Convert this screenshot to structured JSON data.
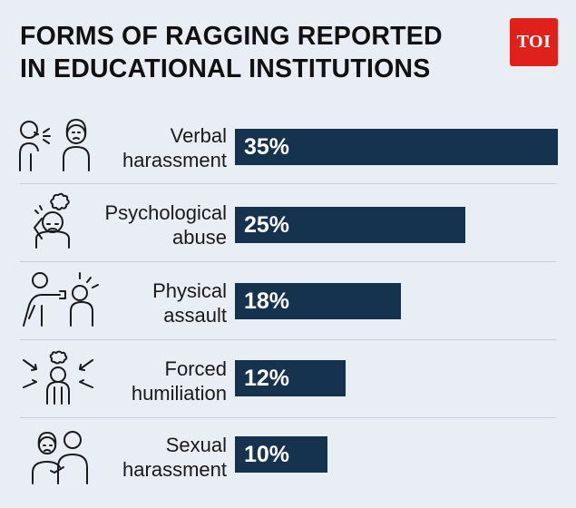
{
  "header": {
    "title_line1": "FORMS OF RAGGING REPORTED",
    "title_line2": "IN EDUCATIONAL INSTITUTIONS",
    "logo_text": "TOI",
    "logo_color": "#e0201b"
  },
  "chart_data": {
    "type": "bar",
    "orientation": "horizontal",
    "title": "FORMS OF RAGGING REPORTED IN EDUCATIONAL INSTITUTIONS",
    "xlabel": "",
    "ylabel": "",
    "grid": false,
    "bar_color": "#15324f",
    "xlim": [
      0,
      35
    ],
    "categories": [
      [
        "Verbal",
        "harassment"
      ],
      [
        "Psychological",
        "abuse"
      ],
      [
        "Physical",
        "assault"
      ],
      [
        "Forced",
        "humiliation"
      ],
      [
        "Sexual",
        "harassment"
      ]
    ],
    "values": [
      35,
      25,
      18,
      12,
      10
    ],
    "value_labels": [
      "35%",
      "25%",
      "18%",
      "12%",
      "10%"
    ],
    "icons": [
      "shouting-people-icon",
      "stressed-person-icon",
      "punching-people-icon",
      "pointed-at-person-icon",
      "comforting-people-icon"
    ]
  }
}
